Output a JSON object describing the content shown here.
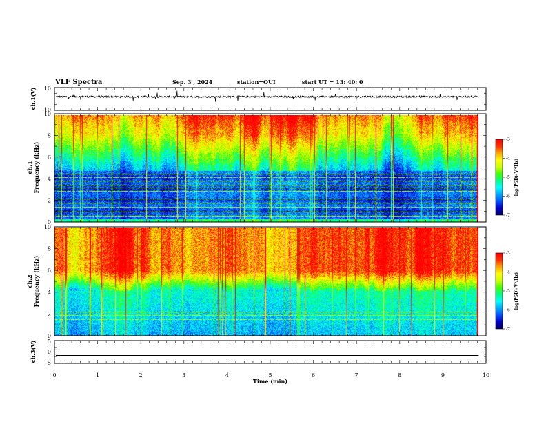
{
  "header": {
    "title": "VLF Spectra",
    "date": "Sep. 3 , 2024",
    "station": "station=OUI",
    "start": "start UT = 13: 40: 0"
  },
  "chart_data": [
    {
      "type": "line",
      "id": "ch1-waveform",
      "ylabel": "ch.1(V)",
      "ylim": [
        -10,
        10
      ],
      "yticks": [
        "10",
        "-10"
      ],
      "xlim": [
        0,
        10
      ],
      "baseline": 2,
      "noise_amplitude": 0.8,
      "spike_amplitude": 5
    },
    {
      "type": "heatmap",
      "id": "ch1-spectrogram",
      "title": "ch.1",
      "ylabel": "Frequency (kHz)",
      "ylim": [
        0,
        10
      ],
      "yticks": [
        "0",
        "2",
        "4",
        "6",
        "8",
        "10"
      ],
      "xlim": [
        0,
        9.83
      ],
      "colorbar": {
        "label": "log(PSD)(V²/Hz)",
        "range": [
          -7,
          -3
        ],
        "ticks": [
          "-3",
          "-4",
          "-5",
          "-6",
          "-7"
        ]
      },
      "low_band_top_khz": 4.8,
      "mid_band_top_khz": 8.5,
      "horizontal_lines_khz": [
        0.6,
        1.0,
        1.4,
        1.8,
        2.2,
        2.9,
        3.2,
        3.5,
        3.9,
        4.2,
        4.5
      ]
    },
    {
      "type": "heatmap",
      "id": "ch2-spectrogram",
      "title": "ch.2",
      "ylabel": "Frequency (kHz)",
      "ylim": [
        0,
        10
      ],
      "yticks": [
        "0",
        "2",
        "4",
        "6",
        "8",
        "10"
      ],
      "xlim": [
        0,
        9.83
      ],
      "colorbar": {
        "label": "log(PSD)(V²/Hz)",
        "range": [
          -7,
          -3
        ],
        "ticks": [
          "-3",
          "-4",
          "-5",
          "-6",
          "-7"
        ]
      },
      "low_band_top_khz": 4.2,
      "mid_band_top_khz": 6.0,
      "horizontal_lines_khz": [
        1.5,
        1.9,
        2.2
      ]
    },
    {
      "type": "line",
      "id": "ch3-waveform",
      "ylabel": "ch.3(V)",
      "ylim": [
        -5,
        5
      ],
      "yticks": [
        "5",
        "0",
        "-5"
      ],
      "xlim": [
        0,
        9.83
      ],
      "constant_value": -1.6
    }
  ],
  "xaxis": {
    "label": "Time (min)",
    "range": [
      0,
      10
    ],
    "ticks": [
      "0",
      "1",
      "2",
      "3",
      "4",
      "5",
      "6",
      "7",
      "8",
      "9",
      "10"
    ]
  },
  "colors": {
    "colormap": [
      "#000066",
      "#0000cc",
      "#0055ff",
      "#00aaff",
      "#00ffff",
      "#00ff88",
      "#44ff00",
      "#ccff00",
      "#ffff00",
      "#ffaa00",
      "#ff3300",
      "#ff0000"
    ],
    "line": "#000000"
  }
}
